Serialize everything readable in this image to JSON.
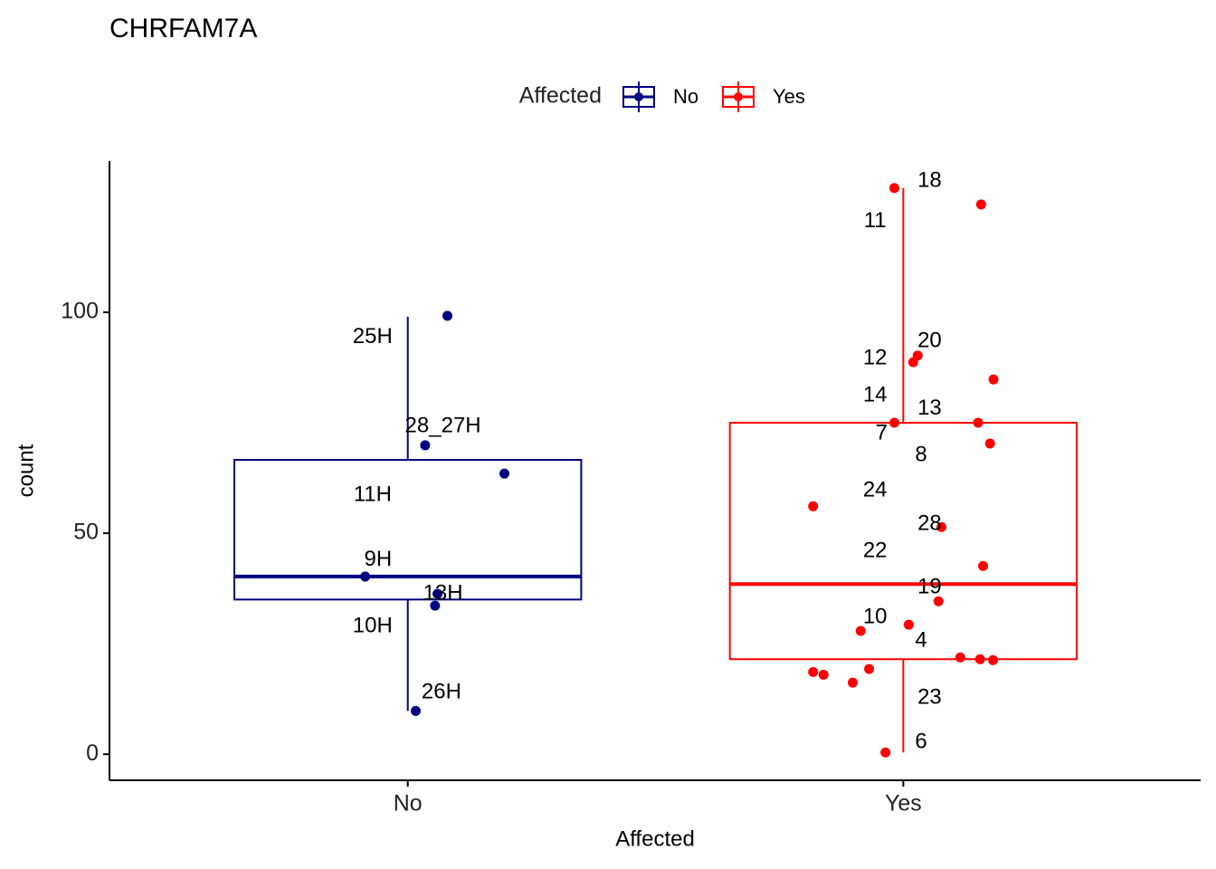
{
  "chart_data": {
    "type": "box",
    "title": "CHRFAM7A",
    "x_label": "Affected",
    "y_label": "count",
    "legend_title": "Affected",
    "legend_position": "top",
    "categories": [
      "No",
      "Yes"
    ],
    "xlim": [
      0.398,
      2.6
    ],
    "ylim": [
      -5.9,
      134.2
    ],
    "yticks": [
      0,
      50,
      100
    ],
    "series": [
      {
        "name": "No",
        "color": "#000080",
        "box": [
          9.8,
          35.0,
          40.2,
          66.6,
          99.0
        ],
        "points_x": [
          1.08,
          1.035,
          1.195,
          0.914,
          1.06,
          1.055,
          1.016
        ],
        "points_y": [
          99.2,
          69.9,
          63.5,
          40.2,
          36.3,
          33.6,
          9.8
        ],
        "labels": [
          {
            "text": "25H",
            "x": 0.929,
            "y": 94.3
          },
          {
            "text": "28_27H",
            "x": 1.071,
            "y": 74.2
          },
          {
            "text": "11H",
            "x": 0.929,
            "y": 58.6
          },
          {
            "text": "9H",
            "x": 0.94,
            "y": 43.9
          },
          {
            "text": "13H",
            "x": 1.071,
            "y": 36.3
          },
          {
            "text": "10H",
            "x": 0.929,
            "y": 28.9
          },
          {
            "text": "26H",
            "x": 1.068,
            "y": 13.9
          }
        ]
      },
      {
        "name": "Yes",
        "color": "#ff0000",
        "box": [
          0.4,
          21.5,
          38.5,
          75.0,
          128.1
        ],
        "points_x": [
          1.982,
          2.157,
          2.029,
          2.02,
          2.182,
          1.982,
          2.151,
          2.175,
          1.818,
          2.077,
          2.161,
          2.071,
          1.914,
          2.011,
          2.115,
          2.155,
          2.181,
          1.818,
          1.839,
          1.931,
          1.898,
          1.964
        ],
        "points_y": [
          128.1,
          124.4,
          90.2,
          88.7,
          84.8,
          75.0,
          75.0,
          70.3,
          56.1,
          51.4,
          42.6,
          34.6,
          27.9,
          29.3,
          21.9,
          21.5,
          21.3,
          18.6,
          18.0,
          19.3,
          16.2,
          0.4
        ],
        "labels": [
          {
            "text": "18",
            "x": 2.053,
            "y": 129.7
          },
          {
            "text": "11",
            "x": 1.943,
            "y": 120.5
          },
          {
            "text": "20",
            "x": 2.053,
            "y": 93.4
          },
          {
            "text": "12",
            "x": 1.943,
            "y": 89.5
          },
          {
            "text": "14",
            "x": 1.943,
            "y": 81.1
          },
          {
            "text": "13",
            "x": 2.053,
            "y": 78.1
          },
          {
            "text": "7",
            "x": 1.956,
            "y": 72.5
          },
          {
            "text": "8",
            "x": 2.036,
            "y": 67.6
          },
          {
            "text": "24",
            "x": 1.943,
            "y": 59.6
          },
          {
            "text": "28",
            "x": 2.053,
            "y": 52.0
          },
          {
            "text": "22",
            "x": 1.943,
            "y": 45.9
          },
          {
            "text": "19",
            "x": 2.053,
            "y": 37.7
          },
          {
            "text": "10",
            "x": 1.943,
            "y": 30.9
          },
          {
            "text": "4",
            "x": 2.036,
            "y": 25.6
          },
          {
            "text": "23",
            "x": 2.053,
            "y": 12.7
          },
          {
            "text": "6",
            "x": 2.036,
            "y": 2.7
          }
        ]
      }
    ]
  }
}
